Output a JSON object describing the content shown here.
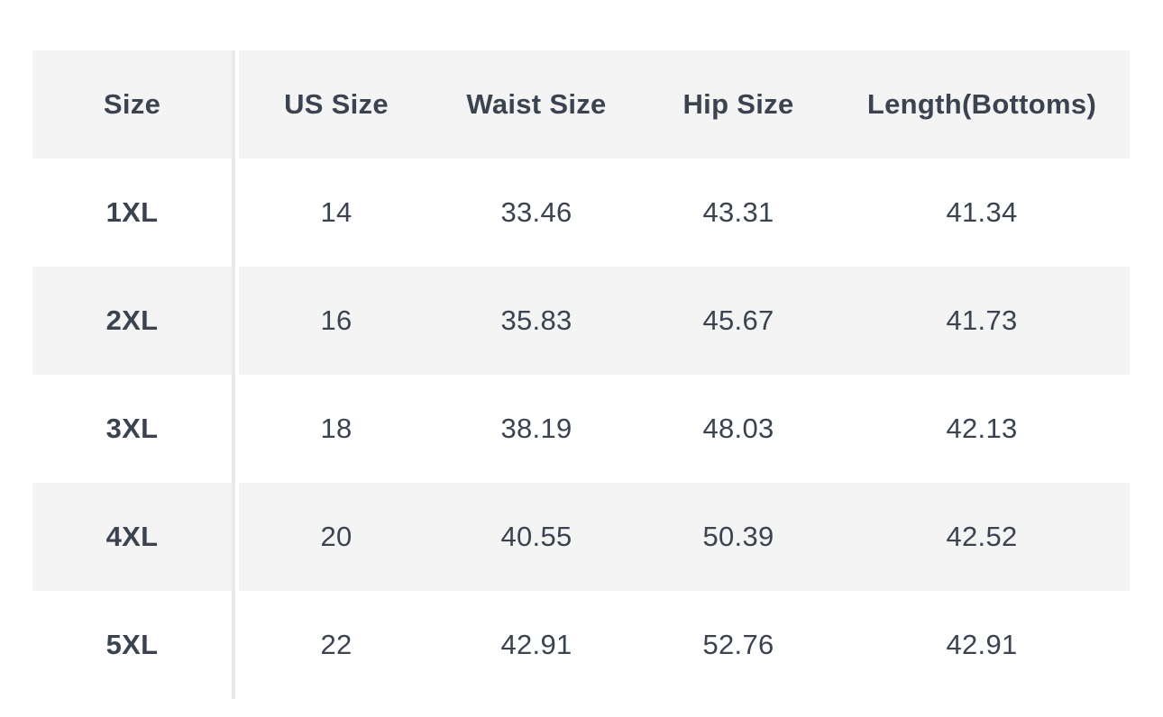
{
  "table": {
    "columns": [
      "Size",
      "US Size",
      "Waist Size",
      "Hip Size",
      "Length(Bottoms)"
    ],
    "rows": [
      {
        "size": "1XL",
        "us_size": "14",
        "waist": "33.46",
        "hip": "43.31",
        "length": "41.34"
      },
      {
        "size": "2XL",
        "us_size": "16",
        "waist": "35.83",
        "hip": "45.67",
        "length": "41.73"
      },
      {
        "size": "3XL",
        "us_size": "18",
        "waist": "38.19",
        "hip": "48.03",
        "length": "42.13"
      },
      {
        "size": "4XL",
        "us_size": "20",
        "waist": "40.55",
        "hip": "50.39",
        "length": "42.52"
      },
      {
        "size": "5XL",
        "us_size": "22",
        "waist": "42.91",
        "hip": "52.76",
        "length": "42.91"
      }
    ]
  },
  "colors": {
    "stripe": "#f4f4f5",
    "divider": "#e8e9eb",
    "text": "#3b4351"
  }
}
